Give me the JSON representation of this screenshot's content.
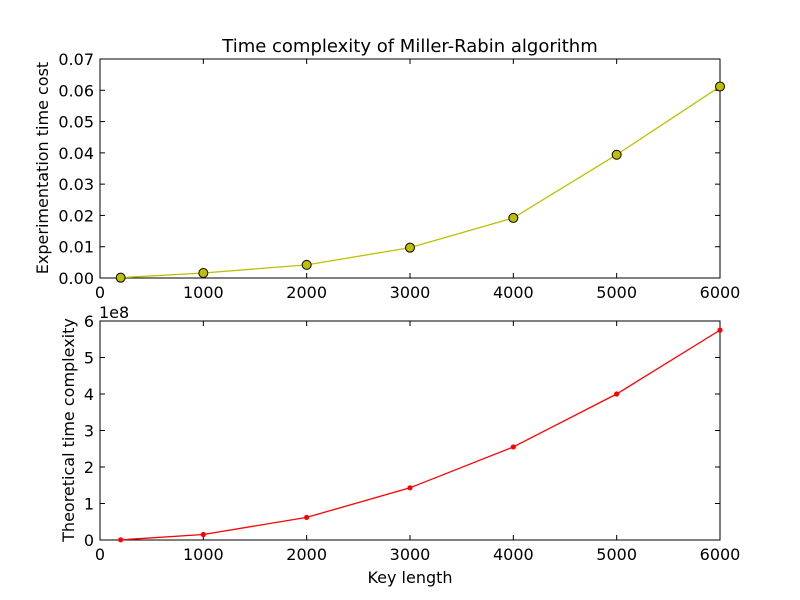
{
  "chart_data": [
    {
      "type": "line",
      "title": "Time complexity of Miller-Rabin algorithm",
      "xlabel": "",
      "ylabel": "Experimentation time cost",
      "xlim": [
        0,
        6000
      ],
      "ylim": [
        0,
        0.07
      ],
      "xticks": [
        "0",
        "1000",
        "2000",
        "3000",
        "4000",
        "5000",
        "6000"
      ],
      "yticks": [
        "0.00",
        "0.01",
        "0.02",
        "0.03",
        "0.04",
        "0.05",
        "0.06",
        "0.07"
      ],
      "grid": false,
      "series": [
        {
          "color": "#bfbf00",
          "marker": "circle",
          "x": [
            200,
            1000,
            2000,
            3000,
            4000,
            5000,
            6000
          ],
          "y": [
            0.0001,
            0.0016,
            0.0042,
            0.0097,
            0.0192,
            0.0394,
            0.0612
          ]
        }
      ]
    },
    {
      "type": "line",
      "title": "",
      "xlabel": "Key length",
      "ylabel": "Theoretical time complexity",
      "offset_label": "1e8",
      "xlim": [
        0,
        6000
      ],
      "ylim": [
        0,
        6
      ],
      "xticks": [
        "0",
        "1000",
        "2000",
        "3000",
        "4000",
        "5000",
        "6000"
      ],
      "yticks": [
        "0",
        "1",
        "2",
        "3",
        "4",
        "5",
        "6"
      ],
      "grid": false,
      "series": [
        {
          "color": "#ff0000",
          "marker": "dot",
          "x": [
            200,
            1000,
            2000,
            3000,
            4000,
            5000,
            6000
          ],
          "y": [
            0.005,
            0.15,
            0.62,
            1.43,
            2.55,
            4.0,
            5.75
          ]
        }
      ]
    }
  ]
}
